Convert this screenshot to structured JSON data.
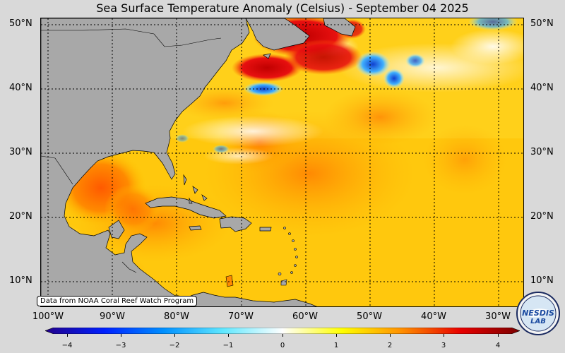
{
  "title": "Sea Surface Temperature Anomaly (Celsius) - September 04 2025",
  "credit": "Data from NOAA Coral Reef Watch Program",
  "lat_labels": [
    "50°N",
    "40°N",
    "30°N",
    "20°N",
    "10°N"
  ],
  "lon_labels": [
    "100°W",
    "90°W",
    "80°W",
    "70°W",
    "60°W",
    "50°W",
    "40°W",
    "30°W"
  ],
  "colorbar": {
    "ticks": [
      "−4",
      "−3",
      "−2",
      "−1",
      "0",
      "1",
      "2",
      "3",
      "4"
    ],
    "range": [
      -4,
      4
    ],
    "colors": [
      "#22008a",
      "#0040ff",
      "#00bfff",
      "#aef4ff",
      "#ffffff",
      "#ffff00",
      "#ff8000",
      "#e00000",
      "#7a0000"
    ]
  },
  "logo": {
    "text": "NESDIS LAB",
    "icon": "nesdis-lab-logo"
  },
  "colors": {
    "land": "#a8a8a8",
    "background": "#d9d9d9",
    "ocean_base": "#ffd21c"
  }
}
